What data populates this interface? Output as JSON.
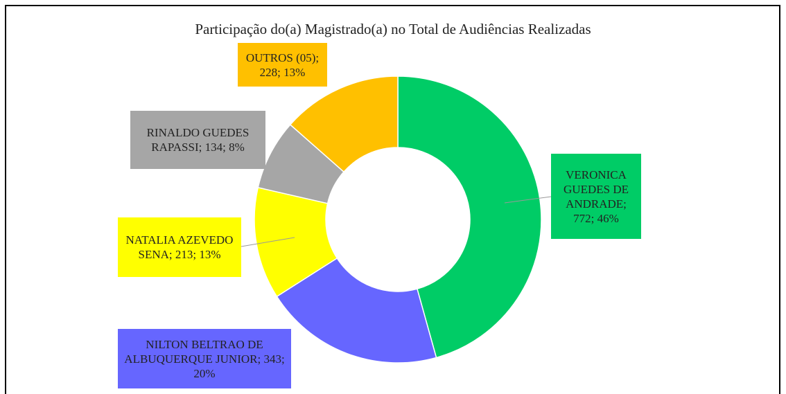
{
  "chart_data": {
    "type": "donut",
    "title": "Participação do(a) Magistrado(a) no Total de Audiências Realizadas",
    "values": [
      772,
      343,
      213,
      134,
      228
    ],
    "value_labels": [
      "VERONICA GUEDES DE ANDRADE; 772; 46%",
      "NILTON BELTRAO DE ALBUQUERQUE JUNIOR; 343; 20%",
      "NATALIA AZEVEDO SENA; 213; 13%",
      "RINALDO GUEDES RAPASSI; 134; 8%",
      "OUTROS (05); 228; 13%"
    ],
    "colors": [
      "#00cc66",
      "#6666ff",
      "#ffff00",
      "#a6a6a6",
      "#ffc000"
    ]
  }
}
